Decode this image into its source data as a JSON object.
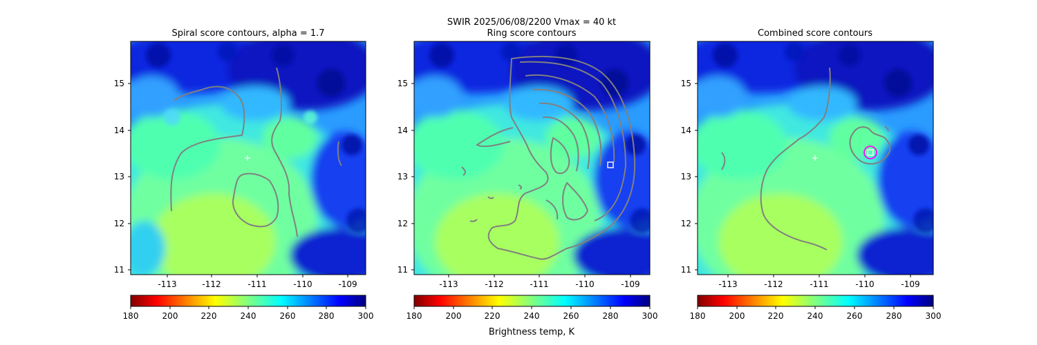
{
  "figure": {
    "suptitle_line": "SWIR  2025/06/08/2200    Vmax = 40 kt",
    "colorbar_label": "Brightness temp, K"
  },
  "chart_data": [
    {
      "type": "heatmap",
      "title": "Spiral score contours, alpha =  1.7",
      "xlim": [
        -113.7,
        -108.5
      ],
      "ylim": [
        10.9,
        15.9
      ],
      "x_ticks": [
        -113,
        -112,
        -111,
        -110,
        -109
      ],
      "y_ticks": [
        11,
        12,
        13,
        14,
        15
      ],
      "grid": false,
      "overlay": "gray contour lines of spiral score",
      "markers": [
        {
          "kind": "plus",
          "color": "#ffffff",
          "x": -111.1,
          "y": 13.4
        }
      ],
      "colorbar": {
        "range": [
          180,
          300
        ],
        "ticks": [
          180,
          200,
          220,
          240,
          260,
          280,
          300
        ],
        "colormap": "jet_r"
      }
    },
    {
      "type": "heatmap",
      "title": "Ring score contours",
      "xlim": [
        -113.7,
        -108.5
      ],
      "ylim": [
        10.9,
        15.9
      ],
      "x_ticks": [
        -113,
        -112,
        -111,
        -110,
        -109
      ],
      "y_ticks": [
        11,
        12,
        13,
        14,
        15
      ],
      "grid": false,
      "overlay": "dense gray contour lines of ring score",
      "markers": [
        {
          "kind": "square",
          "color": "#ffffff",
          "x": -109.4,
          "y": 13.25
        }
      ],
      "colorbar": {
        "range": [
          180,
          300
        ],
        "ticks": [
          180,
          200,
          220,
          240,
          260,
          280,
          300
        ],
        "colormap": "jet_r"
      }
    },
    {
      "type": "heatmap",
      "title": "Combined score contours",
      "xlim": [
        -113.7,
        -108.5
      ],
      "ylim": [
        10.9,
        15.9
      ],
      "x_ticks": [
        -113,
        -112,
        -111,
        -110,
        -109
      ],
      "y_ticks": [
        11,
        12,
        13,
        14,
        15
      ],
      "grid": false,
      "overlay": "gray contour lines of combined score",
      "markers": [
        {
          "kind": "plus",
          "color": "#ffffff",
          "x": -111.0,
          "y": 13.4
        },
        {
          "kind": "circle",
          "color": "#ff00ff",
          "x": -109.9,
          "y": 13.52
        },
        {
          "kind": "square",
          "color": "#ffffff",
          "x": -109.9,
          "y": 13.52
        }
      ],
      "colorbar": {
        "range": [
          180,
          300
        ],
        "ticks": [
          180,
          200,
          220,
          240,
          260,
          280,
          300
        ],
        "colormap": "jet_r"
      }
    }
  ]
}
